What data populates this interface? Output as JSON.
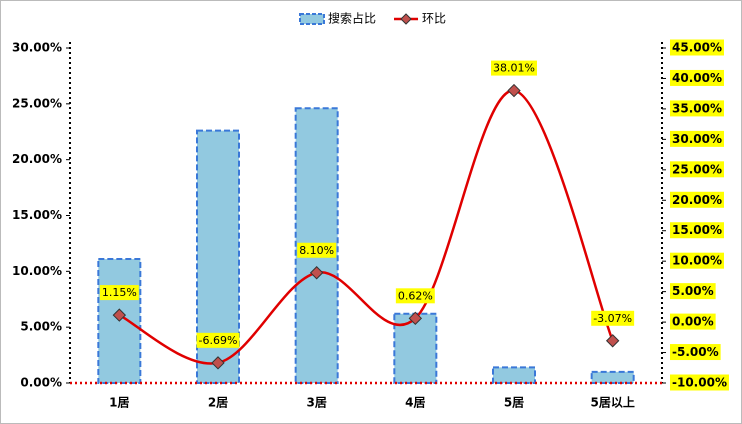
{
  "chart_data": {
    "type": "combo",
    "categories": [
      "1居",
      "2居",
      "3居",
      "4居",
      "5居",
      "5居以上"
    ],
    "series": [
      {
        "name": "搜索占比",
        "type": "bar",
        "color": "#92c9e0",
        "border_color": "#3a78d8",
        "axis": "y",
        "values": [
          11.1,
          22.6,
          24.6,
          6.2,
          1.4,
          1.0
        ]
      },
      {
        "name": "环比",
        "type": "line",
        "color": "#e00000",
        "marker_color": "#c0504d",
        "axis": "y2",
        "values": [
          1.15,
          -6.69,
          8.1,
          0.62,
          38.01,
          -3.07
        ],
        "value_labels": [
          "1.15%",
          "-6.69%",
          "8.10%",
          "0.62%",
          "38.01%",
          "-3.07%"
        ]
      }
    ],
    "ylim": [
      0,
      30
    ],
    "yticks": [
      {
        "value": 0,
        "label": "0.00%"
      },
      {
        "value": 5,
        "label": "5.00%"
      },
      {
        "value": 10,
        "label": "10.00%"
      },
      {
        "value": 15,
        "label": "15.00%"
      },
      {
        "value": 20,
        "label": "20.00%"
      },
      {
        "value": 25,
        "label": "25.00%"
      },
      {
        "value": 30,
        "label": "30.00%"
      }
    ],
    "y2lim": [
      -10,
      45
    ],
    "y2ticks": [
      {
        "value": -10,
        "label": "-10.00%"
      },
      {
        "value": -5,
        "label": "-5.00%"
      },
      {
        "value": 0,
        "label": "0.00%"
      },
      {
        "value": 5,
        "label": "5.00%"
      },
      {
        "value": 10,
        "label": "10.00%"
      },
      {
        "value": 15,
        "label": "15.00%"
      },
      {
        "value": 20,
        "label": "20.00%"
      },
      {
        "value": 25,
        "label": "25.00%"
      },
      {
        "value": 30,
        "label": "30.00%"
      },
      {
        "value": 35,
        "label": "35.00%"
      },
      {
        "value": 40,
        "label": "40.00%"
      },
      {
        "value": 45,
        "label": "45.00%"
      }
    ],
    "grid": false,
    "legend": "top",
    "label_background": "#ffff00"
  }
}
